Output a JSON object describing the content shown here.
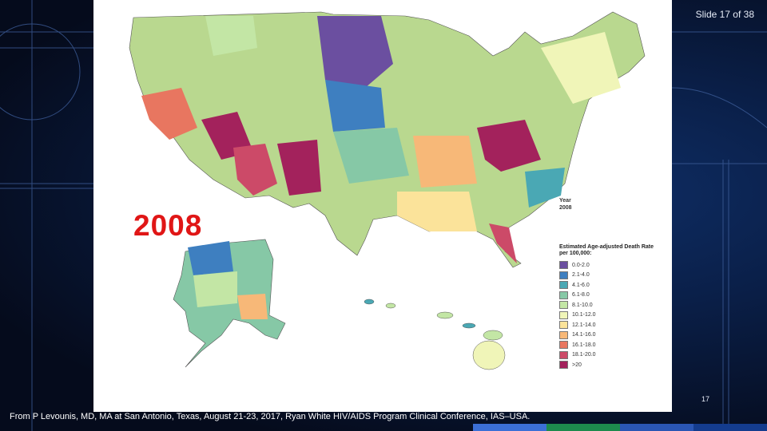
{
  "slide_counter": "Slide 17 of 38",
  "page_number": "17",
  "year_overlay": "2008",
  "year_label": {
    "title": "Year",
    "value": "2008"
  },
  "legend": {
    "title": "Estimated Age-adjusted Death Rate per 100,000:",
    "items": [
      {
        "label": "0.0-2.0",
        "color": "#6b4fa0"
      },
      {
        "label": "2.1-4.0",
        "color": "#3e7fc0"
      },
      {
        "label": "4.1-6.0",
        "color": "#4aa8b4"
      },
      {
        "label": "6.1-8.0",
        "color": "#86c8a6"
      },
      {
        "label": "8.1-10.0",
        "color": "#c3e6a5"
      },
      {
        "label": "10.1-12.0",
        "color": "#f0f5b8"
      },
      {
        "label": "12.1-14.0",
        "color": "#fbe39a"
      },
      {
        "label": "14.1-16.0",
        "color": "#f7b878"
      },
      {
        "label": "16.1-18.0",
        "color": "#e87660"
      },
      {
        "label": "18.1-20.0",
        "color": "#cc4a68"
      },
      {
        "label": ">20",
        "color": "#a3225c"
      }
    ]
  },
  "citation": "From P Levounis, MD, MA at San Antonio, Texas, August 21-23, 2017, Ryan White HIV/AIDS Program Clinical Conference, IAS–USA.",
  "bottom_bar_colors": [
    "#3b6fd6",
    "#1d8a4d",
    "#2a56b4",
    "#143c8e"
  ]
}
